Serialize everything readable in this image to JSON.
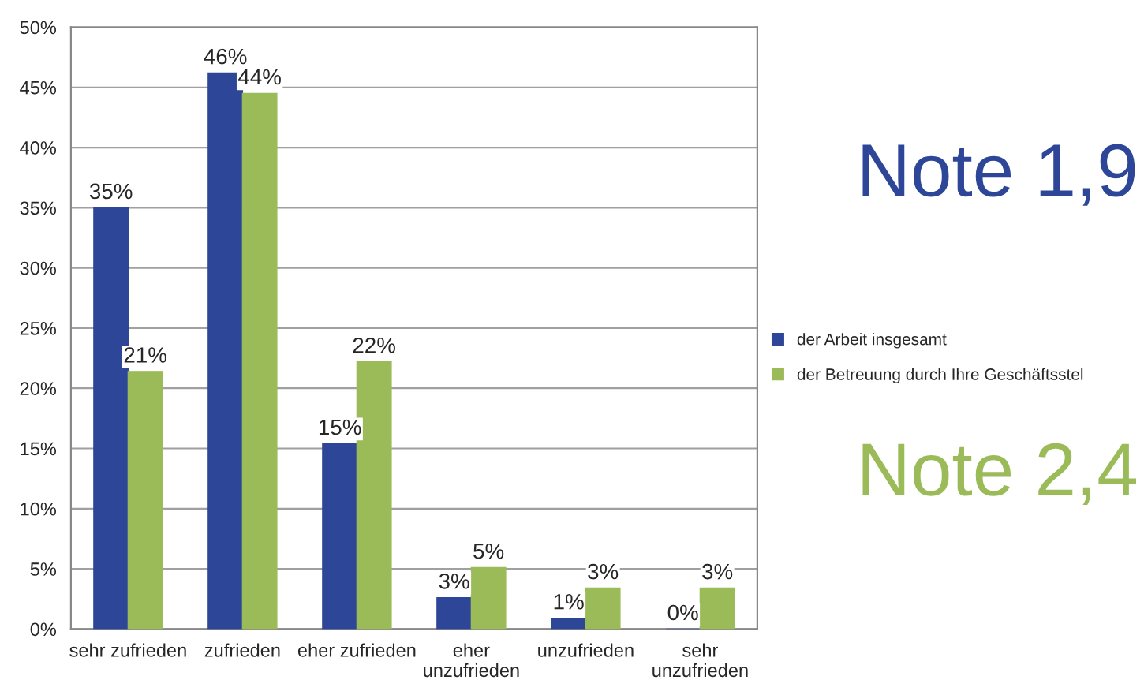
{
  "chart_data": {
    "type": "bar",
    "categories": [
      "sehr zufrieden",
      "zufrieden",
      "eher zufrieden",
      "eher\nunzufrieden",
      "unzufrieden",
      "sehr\nunzufrieden"
    ],
    "series": [
      {
        "name": "der Arbeit insgesamt",
        "color": "#2e4697",
        "values": [
          35,
          46.2,
          15.4,
          2.6,
          0.9,
          0
        ],
        "value_labels": [
          "35%",
          "46%",
          "15%",
          "3%",
          "1%",
          "0%"
        ]
      },
      {
        "name": "der Betreuung durch Ihre Geschäftsstel",
        "color": "#9bbb59",
        "values": [
          21.4,
          44.5,
          22.2,
          5.1,
          3.4,
          3.4
        ],
        "value_labels": [
          "21%",
          "44%",
          "22%",
          "5%",
          "3%",
          "3%"
        ]
      }
    ],
    "ylim": [
      0,
      50
    ],
    "yticks": [
      {
        "value": 0,
        "label": "0%"
      },
      {
        "value": 5,
        "label": "5%"
      },
      {
        "value": 10,
        "label": "10%"
      },
      {
        "value": 15,
        "label": "15%"
      },
      {
        "value": 20,
        "label": "20%"
      },
      {
        "value": 25,
        "label": "25%"
      },
      {
        "value": 30,
        "label": "30%"
      },
      {
        "value": 35,
        "label": "35%"
      },
      {
        "value": 40,
        "label": "40%"
      },
      {
        "value": 45,
        "label": "45%"
      },
      {
        "value": 50,
        "label": "50%"
      }
    ],
    "grid": "y",
    "legend": "right",
    "annotations": [
      "Note 1,9",
      "Note 2,4"
    ]
  }
}
